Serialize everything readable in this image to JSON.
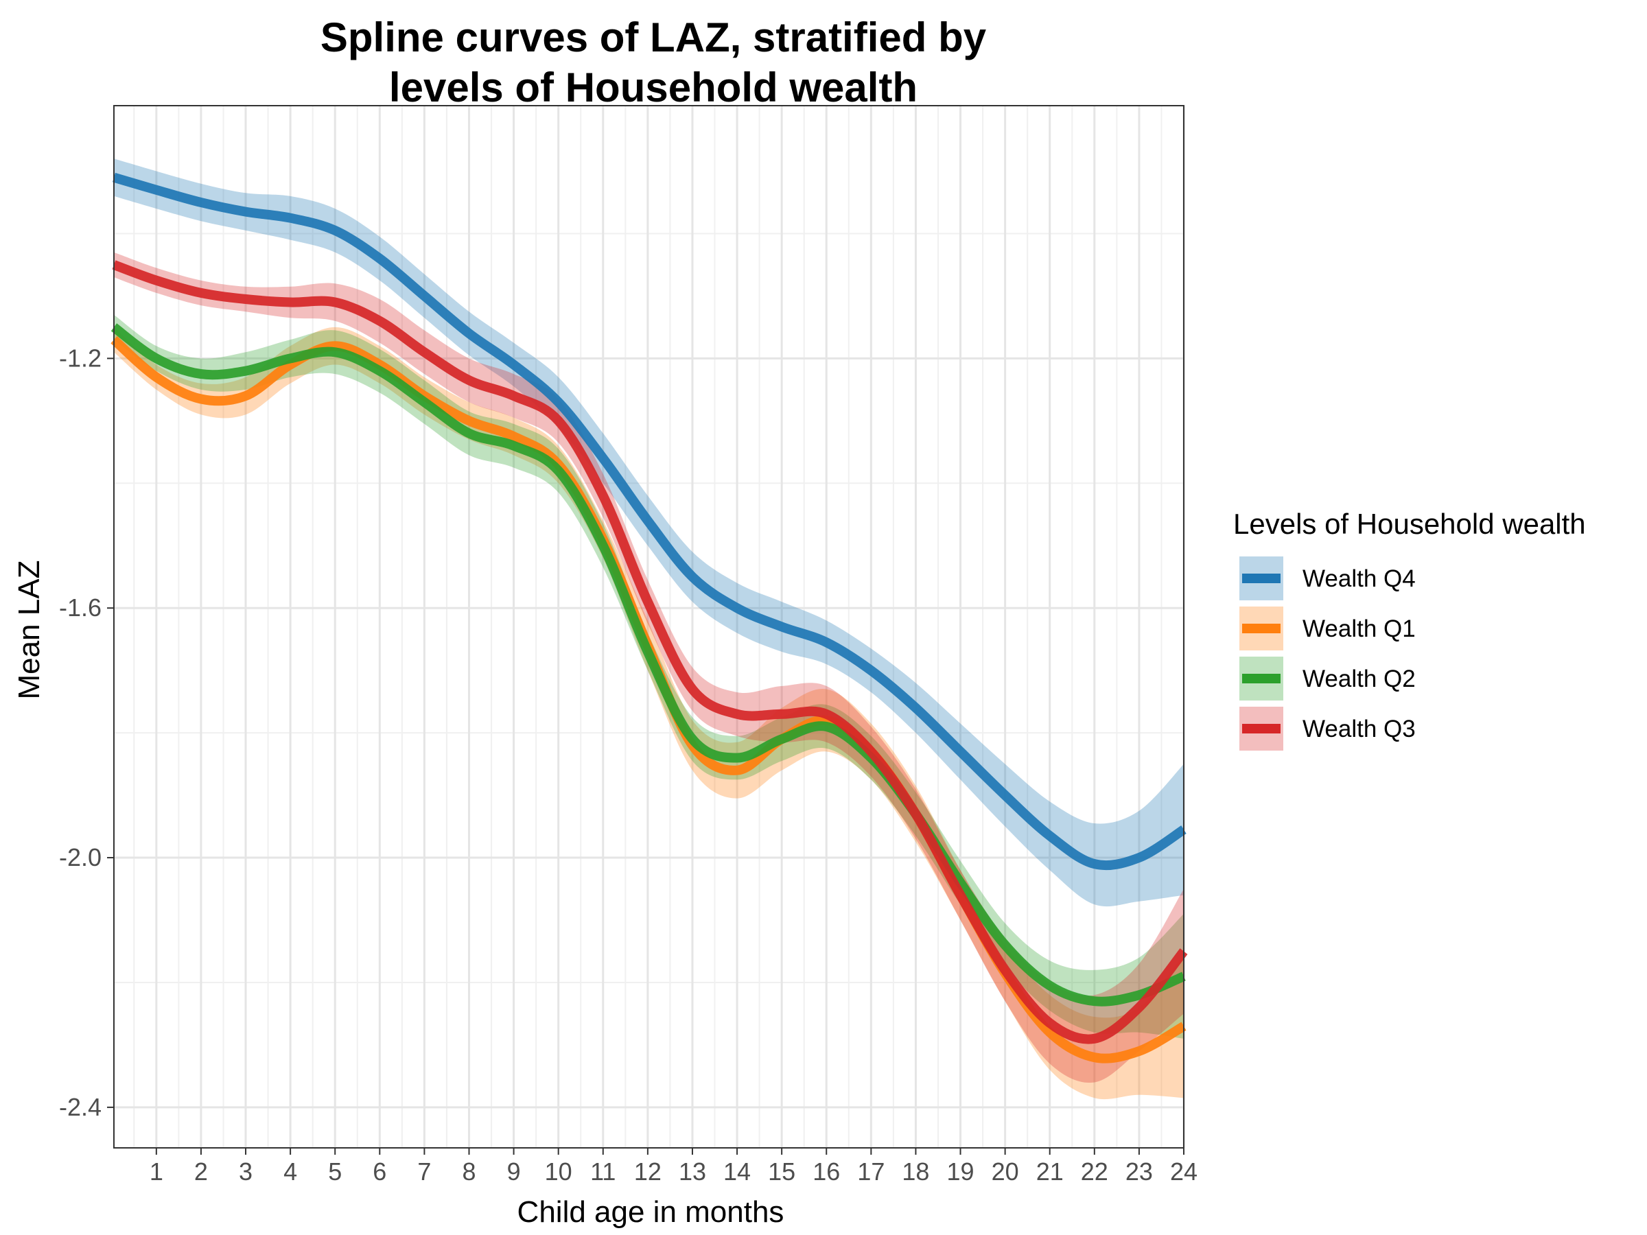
{
  "chart_data": {
    "type": "line",
    "title_lines": [
      "Spline curves of LAZ, stratified by",
      "levels of Household wealth"
    ],
    "xlabel": "Child age in months",
    "ylabel": "Mean LAZ",
    "xlim": [
      0.05,
      24
    ],
    "ylim": [
      -2.465,
      -0.795
    ],
    "x_ticks": [
      1,
      2,
      3,
      4,
      5,
      6,
      7,
      8,
      9,
      10,
      11,
      12,
      13,
      14,
      15,
      16,
      17,
      18,
      19,
      20,
      21,
      22,
      23,
      24
    ],
    "x_tick_labels": [
      "1",
      "2",
      "3",
      "4",
      "5",
      "6",
      "7",
      "8",
      "9",
      "10",
      "11",
      "12",
      "13",
      "14",
      "15",
      "16",
      "17",
      "18",
      "19",
      "20",
      "21",
      "22",
      "23",
      "24"
    ],
    "y_ticks": [
      -1.2,
      -1.6,
      -2.0,
      -2.4
    ],
    "y_tick_labels": [
      "-1.2",
      "-1.6",
      "-2.0",
      "-2.4"
    ],
    "grid": true,
    "legend": {
      "title": "Levels of Household wealth",
      "placement": "right"
    },
    "series": [
      {
        "name": "Wealth Q4",
        "color": "#1f77b4",
        "x": [
          0.05,
          1,
          2,
          3,
          4,
          5,
          6,
          7,
          8,
          9,
          10,
          11,
          12,
          13,
          14,
          15,
          16,
          17,
          18,
          19,
          20,
          21,
          22,
          23,
          24
        ],
        "y": [
          -0.91,
          -0.93,
          -0.95,
          -0.965,
          -0.975,
          -0.995,
          -1.04,
          -1.1,
          -1.16,
          -1.21,
          -1.27,
          -1.36,
          -1.46,
          -1.55,
          -1.6,
          -1.63,
          -1.655,
          -1.7,
          -1.76,
          -1.83,
          -1.9,
          -1.965,
          -2.01,
          -2.0,
          -1.955
        ],
        "lo": [
          -0.94,
          -0.96,
          -0.98,
          -0.995,
          -1.01,
          -1.03,
          -1.075,
          -1.135,
          -1.195,
          -1.245,
          -1.31,
          -1.4,
          -1.5,
          -1.59,
          -1.64,
          -1.67,
          -1.69,
          -1.735,
          -1.8,
          -1.875,
          -1.95,
          -2.02,
          -2.075,
          -2.07,
          -2.06
        ],
        "hi": [
          -0.88,
          -0.9,
          -0.92,
          -0.935,
          -0.94,
          -0.96,
          -1.005,
          -1.065,
          -1.125,
          -1.175,
          -1.23,
          -1.32,
          -1.42,
          -1.51,
          -1.56,
          -1.59,
          -1.62,
          -1.665,
          -1.72,
          -1.785,
          -1.85,
          -1.91,
          -1.945,
          -1.925,
          -1.85
        ]
      },
      {
        "name": "Wealth Q1",
        "color": "#ff7f0e",
        "x": [
          0.05,
          1,
          2,
          3,
          4,
          5,
          6,
          7,
          8,
          9,
          10,
          11,
          12,
          13,
          14,
          15,
          16,
          17,
          18,
          19,
          20,
          21,
          22,
          23,
          24
        ],
        "y": [
          -1.17,
          -1.23,
          -1.265,
          -1.26,
          -1.21,
          -1.18,
          -1.21,
          -1.26,
          -1.3,
          -1.325,
          -1.37,
          -1.49,
          -1.66,
          -1.82,
          -1.86,
          -1.81,
          -1.78,
          -1.83,
          -1.93,
          -2.06,
          -2.185,
          -2.28,
          -2.32,
          -2.31,
          -2.27
        ],
        "lo": [
          -1.19,
          -1.25,
          -1.29,
          -1.29,
          -1.24,
          -1.21,
          -1.24,
          -1.29,
          -1.33,
          -1.355,
          -1.4,
          -1.52,
          -1.7,
          -1.86,
          -1.905,
          -1.86,
          -1.83,
          -1.875,
          -1.975,
          -2.1,
          -2.23,
          -2.34,
          -2.385,
          -2.38,
          -2.385
        ],
        "hi": [
          -1.15,
          -1.21,
          -1.24,
          -1.23,
          -1.18,
          -1.15,
          -1.18,
          -1.23,
          -1.27,
          -1.295,
          -1.34,
          -1.46,
          -1.62,
          -1.78,
          -1.815,
          -1.76,
          -1.73,
          -1.785,
          -1.885,
          -2.02,
          -2.14,
          -2.22,
          -2.255,
          -2.24,
          -2.155
        ]
      },
      {
        "name": "Wealth Q2",
        "color": "#2ca02c",
        "x": [
          0.05,
          1,
          2,
          3,
          4,
          5,
          6,
          7,
          8,
          9,
          10,
          11,
          12,
          13,
          14,
          15,
          16,
          17,
          18,
          19,
          20,
          21,
          22,
          23,
          24
        ],
        "y": [
          -1.15,
          -1.2,
          -1.225,
          -1.22,
          -1.2,
          -1.19,
          -1.22,
          -1.27,
          -1.32,
          -1.34,
          -1.38,
          -1.5,
          -1.67,
          -1.81,
          -1.84,
          -1.81,
          -1.79,
          -1.84,
          -1.93,
          -2.04,
          -2.14,
          -2.205,
          -2.23,
          -2.22,
          -2.19
        ],
        "lo": [
          -1.17,
          -1.22,
          -1.25,
          -1.25,
          -1.23,
          -1.225,
          -1.255,
          -1.305,
          -1.355,
          -1.375,
          -1.415,
          -1.535,
          -1.7,
          -1.845,
          -1.875,
          -1.845,
          -1.825,
          -1.875,
          -1.965,
          -2.075,
          -2.175,
          -2.245,
          -2.28,
          -2.28,
          -2.29
        ],
        "hi": [
          -1.13,
          -1.18,
          -1.2,
          -1.19,
          -1.17,
          -1.155,
          -1.185,
          -1.235,
          -1.285,
          -1.305,
          -1.345,
          -1.465,
          -1.64,
          -1.775,
          -1.805,
          -1.775,
          -1.755,
          -1.805,
          -1.895,
          -2.005,
          -2.105,
          -2.165,
          -2.18,
          -2.16,
          -2.09
        ]
      },
      {
        "name": "Wealth Q3",
        "color": "#d62728",
        "x": [
          0.05,
          1,
          2,
          3,
          4,
          5,
          6,
          7,
          8,
          9,
          10,
          11,
          12,
          13,
          14,
          15,
          16,
          17,
          18,
          19,
          20,
          21,
          22,
          23,
          24
        ],
        "y": [
          -1.05,
          -1.075,
          -1.095,
          -1.105,
          -1.11,
          -1.11,
          -1.14,
          -1.19,
          -1.235,
          -1.26,
          -1.3,
          -1.42,
          -1.59,
          -1.73,
          -1.77,
          -1.77,
          -1.77,
          -1.83,
          -1.93,
          -2.06,
          -2.18,
          -2.265,
          -2.29,
          -2.24,
          -2.15
        ],
        "lo": [
          -1.07,
          -1.095,
          -1.115,
          -1.125,
          -1.135,
          -1.14,
          -1.175,
          -1.225,
          -1.27,
          -1.295,
          -1.335,
          -1.455,
          -1.625,
          -1.765,
          -1.805,
          -1.815,
          -1.815,
          -1.87,
          -1.97,
          -2.1,
          -2.23,
          -2.33,
          -2.36,
          -2.31,
          -2.25
        ],
        "hi": [
          -1.03,
          -1.055,
          -1.075,
          -1.085,
          -1.085,
          -1.08,
          -1.105,
          -1.155,
          -1.2,
          -1.225,
          -1.265,
          -1.385,
          -1.555,
          -1.695,
          -1.735,
          -1.725,
          -1.725,
          -1.79,
          -1.89,
          -2.02,
          -2.13,
          -2.2,
          -2.22,
          -2.17,
          -2.05
        ]
      }
    ]
  }
}
